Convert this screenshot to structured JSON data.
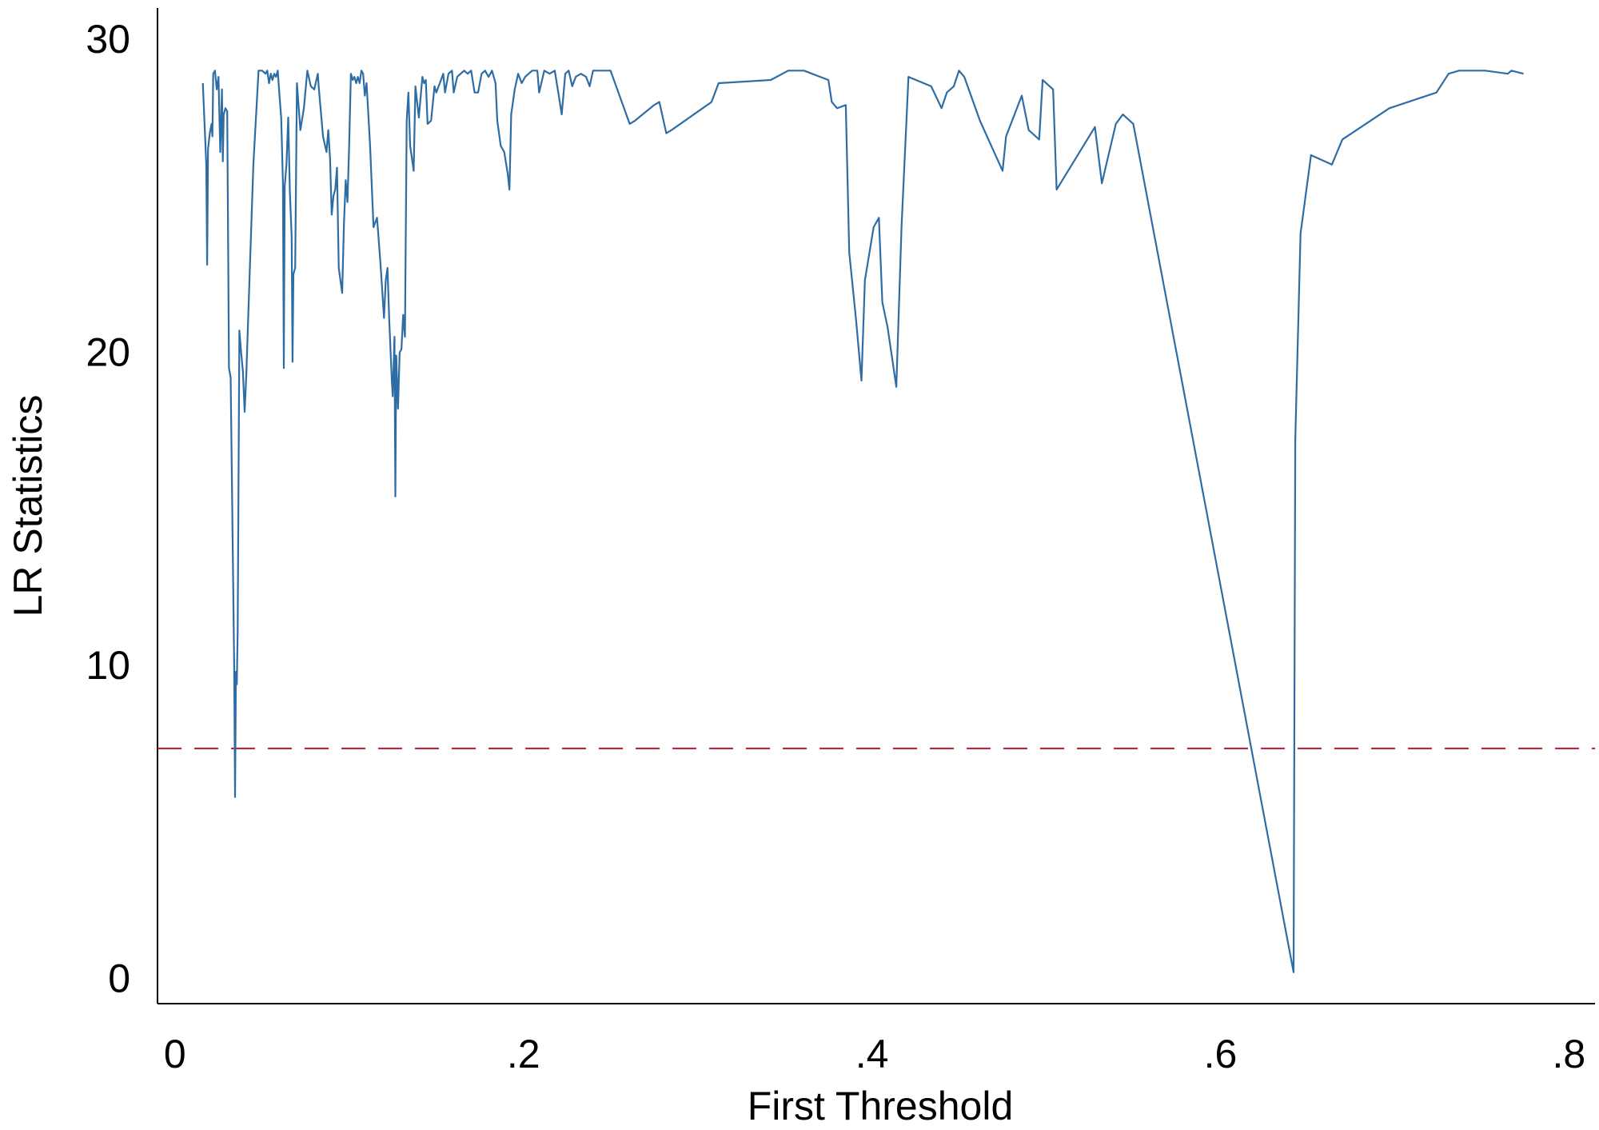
{
  "chart_data": {
    "type": "line",
    "xlabel": "First Threshold",
    "ylabel": "LR Statistics",
    "xlim": [
      -0.01,
      0.815
    ],
    "ylim": [
      -0.8,
      31.0
    ],
    "x_ticks": [
      {
        "value": 0,
        "label": "0"
      },
      {
        "value": 0.2,
        "label": ".2"
      },
      {
        "value": 0.4,
        "label": ".4"
      },
      {
        "value": 0.6,
        "label": ".6"
      },
      {
        "value": 0.8,
        "label": ".8"
      }
    ],
    "y_ticks": [
      {
        "value": 0,
        "label": "0"
      },
      {
        "value": 10,
        "label": "10"
      },
      {
        "value": 20,
        "label": "20"
      },
      {
        "value": 30,
        "label": "30"
      }
    ],
    "grid": false,
    "legend": "none",
    "reference_line": {
      "y": 7.35,
      "style": "dashed",
      "color": "#b2182b"
    },
    "series": [
      {
        "color": "#2e6da4",
        "points": [
          [
            0.016,
            28.6
          ],
          [
            0.018,
            26.0
          ],
          [
            0.0185,
            22.8
          ],
          [
            0.019,
            26.5
          ],
          [
            0.02,
            27.0
          ],
          [
            0.021,
            27.3
          ],
          [
            0.0215,
            26.9
          ],
          [
            0.022,
            28.9
          ],
          [
            0.023,
            29.0
          ],
          [
            0.024,
            28.4
          ],
          [
            0.025,
            28.8
          ],
          [
            0.026,
            26.4
          ],
          [
            0.027,
            28.4
          ],
          [
            0.0275,
            26.1
          ],
          [
            0.028,
            27.6
          ],
          [
            0.029,
            27.8
          ],
          [
            0.03,
            27.7
          ],
          [
            0.031,
            19.5
          ],
          [
            0.032,
            19.2
          ],
          [
            0.034,
            10.0
          ],
          [
            0.0345,
            5.8
          ],
          [
            0.035,
            9.8
          ],
          [
            0.0355,
            9.4
          ],
          [
            0.036,
            11.1
          ],
          [
            0.037,
            20.7
          ],
          [
            0.038,
            20.0
          ],
          [
            0.039,
            19.4
          ],
          [
            0.04,
            18.1
          ],
          [
            0.041,
            19.3
          ],
          [
            0.042,
            21.0
          ],
          [
            0.045,
            26.0
          ],
          [
            0.048,
            29.0
          ],
          [
            0.05,
            29.0
          ],
          [
            0.052,
            28.9
          ],
          [
            0.053,
            29.0
          ],
          [
            0.054,
            28.6
          ],
          [
            0.055,
            28.9
          ],
          [
            0.056,
            28.7
          ],
          [
            0.057,
            28.9
          ],
          [
            0.058,
            28.8
          ],
          [
            0.059,
            29.0
          ],
          [
            0.06,
            28.2
          ],
          [
            0.061,
            27.5
          ],
          [
            0.062,
            25.4
          ],
          [
            0.0625,
            19.5
          ],
          [
            0.063,
            25.3
          ],
          [
            0.064,
            26.0
          ],
          [
            0.065,
            27.5
          ],
          [
            0.066,
            25.1
          ],
          [
            0.067,
            23.7
          ],
          [
            0.0675,
            19.7
          ],
          [
            0.068,
            22.5
          ],
          [
            0.069,
            22.7
          ],
          [
            0.07,
            28.6
          ],
          [
            0.072,
            27.1
          ],
          [
            0.074,
            27.8
          ],
          [
            0.076,
            29.0
          ],
          [
            0.078,
            28.5
          ],
          [
            0.08,
            28.4
          ],
          [
            0.082,
            28.9
          ],
          [
            0.0825,
            28.5
          ],
          [
            0.085,
            26.9
          ],
          [
            0.087,
            26.4
          ],
          [
            0.088,
            27.1
          ],
          [
            0.089,
            26.2
          ],
          [
            0.09,
            24.4
          ],
          [
            0.091,
            25.0
          ],
          [
            0.092,
            25.2
          ],
          [
            0.093,
            25.9
          ],
          [
            0.094,
            22.7
          ],
          [
            0.095,
            22.3
          ],
          [
            0.096,
            21.9
          ],
          [
            0.097,
            24.1
          ],
          [
            0.098,
            25.5
          ],
          [
            0.099,
            24.8
          ],
          [
            0.1,
            26.6
          ],
          [
            0.101,
            28.9
          ],
          [
            0.102,
            28.7
          ],
          [
            0.103,
            28.8
          ],
          [
            0.104,
            28.6
          ],
          [
            0.105,
            28.8
          ],
          [
            0.106,
            28.6
          ],
          [
            0.107,
            29.0
          ],
          [
            0.108,
            28.9
          ],
          [
            0.109,
            28.2
          ],
          [
            0.11,
            28.6
          ],
          [
            0.112,
            26.6
          ],
          [
            0.114,
            24.0
          ],
          [
            0.116,
            24.3
          ],
          [
            0.118,
            22.8
          ],
          [
            0.12,
            21.1
          ],
          [
            0.121,
            22.3
          ],
          [
            0.122,
            22.7
          ],
          [
            0.123,
            21.0
          ],
          [
            0.1245,
            19.1
          ],
          [
            0.125,
            18.6
          ],
          [
            0.126,
            20.5
          ],
          [
            0.1265,
            15.4
          ],
          [
            0.127,
            19.9
          ],
          [
            0.128,
            18.2
          ],
          [
            0.129,
            20.0
          ],
          [
            0.13,
            20.1
          ],
          [
            0.131,
            21.2
          ],
          [
            0.132,
            20.5
          ],
          [
            0.133,
            27.4
          ],
          [
            0.134,
            28.3
          ],
          [
            0.135,
            26.6
          ],
          [
            0.137,
            25.8
          ],
          [
            0.138,
            28.5
          ],
          [
            0.139,
            28.0
          ],
          [
            0.14,
            27.5
          ],
          [
            0.142,
            28.8
          ],
          [
            0.143,
            28.6
          ],
          [
            0.144,
            28.7
          ],
          [
            0.145,
            27.3
          ],
          [
            0.147,
            27.4
          ],
          [
            0.149,
            28.5
          ],
          [
            0.15,
            28.3
          ],
          [
            0.152,
            28.6
          ],
          [
            0.154,
            28.9
          ],
          [
            0.155,
            28.3
          ],
          [
            0.157,
            28.9
          ],
          [
            0.159,
            29.0
          ],
          [
            0.16,
            28.3
          ],
          [
            0.162,
            28.8
          ],
          [
            0.164,
            28.9
          ],
          [
            0.166,
            29.0
          ],
          [
            0.168,
            28.9
          ],
          [
            0.17,
            29.0
          ],
          [
            0.172,
            28.3
          ],
          [
            0.174,
            28.3
          ],
          [
            0.176,
            28.9
          ],
          [
            0.178,
            29.0
          ],
          [
            0.18,
            28.8
          ],
          [
            0.182,
            29.0
          ],
          [
            0.184,
            28.6
          ],
          [
            0.185,
            27.4
          ],
          [
            0.187,
            26.6
          ],
          [
            0.189,
            26.4
          ],
          [
            0.191,
            25.7
          ],
          [
            0.192,
            25.2
          ],
          [
            0.193,
            27.6
          ],
          [
            0.195,
            28.4
          ],
          [
            0.197,
            28.9
          ],
          [
            0.199,
            28.6
          ],
          [
            0.201,
            28.8
          ],
          [
            0.205,
            29.0
          ],
          [
            0.208,
            29.0
          ],
          [
            0.209,
            28.3
          ],
          [
            0.212,
            29.0
          ],
          [
            0.215,
            28.9
          ],
          [
            0.218,
            29.0
          ],
          [
            0.22,
            28.3
          ],
          [
            0.222,
            27.6
          ],
          [
            0.224,
            28.9
          ],
          [
            0.226,
            29.0
          ],
          [
            0.228,
            28.5
          ],
          [
            0.23,
            28.8
          ],
          [
            0.233,
            28.9
          ],
          [
            0.236,
            28.8
          ],
          [
            0.238,
            28.5
          ],
          [
            0.24,
            29.0
          ],
          [
            0.245,
            29.0
          ],
          [
            0.25,
            29.0
          ],
          [
            0.261,
            27.3
          ],
          [
            0.264,
            27.4
          ],
          [
            0.275,
            27.9
          ],
          [
            0.278,
            28.0
          ],
          [
            0.282,
            27.0
          ],
          [
            0.285,
            27.1
          ],
          [
            0.308,
            28.0
          ],
          [
            0.312,
            28.6
          ],
          [
            0.342,
            28.7
          ],
          [
            0.352,
            29.0
          ],
          [
            0.357,
            29.0
          ],
          [
            0.361,
            29.0
          ],
          [
            0.375,
            28.7
          ],
          [
            0.377,
            28.0
          ],
          [
            0.38,
            27.8
          ],
          [
            0.385,
            27.9
          ],
          [
            0.387,
            23.2
          ],
          [
            0.391,
            21.0
          ],
          [
            0.394,
            19.1
          ],
          [
            0.396,
            22.3
          ],
          [
            0.401,
            24.0
          ],
          [
            0.404,
            24.3
          ],
          [
            0.406,
            21.6
          ],
          [
            0.409,
            20.8
          ],
          [
            0.414,
            18.9
          ],
          [
            0.417,
            24.0
          ],
          [
            0.421,
            28.8
          ],
          [
            0.434,
            28.5
          ],
          [
            0.44,
            27.8
          ],
          [
            0.443,
            28.3
          ],
          [
            0.447,
            28.5
          ],
          [
            0.45,
            29.0
          ],
          [
            0.453,
            28.8
          ],
          [
            0.462,
            27.4
          ],
          [
            0.475,
            25.8
          ],
          [
            0.477,
            26.9
          ],
          [
            0.486,
            28.2
          ],
          [
            0.49,
            27.1
          ],
          [
            0.496,
            26.8
          ],
          [
            0.498,
            28.7
          ],
          [
            0.504,
            28.4
          ],
          [
            0.506,
            25.2
          ],
          [
            0.528,
            27.2
          ],
          [
            0.532,
            25.4
          ],
          [
            0.54,
            27.3
          ],
          [
            0.544,
            27.6
          ],
          [
            0.55,
            27.3
          ],
          [
            0.642,
            0.2
          ],
          [
            0.643,
            17.2
          ],
          [
            0.646,
            23.8
          ],
          [
            0.652,
            26.3
          ],
          [
            0.664,
            26.0
          ],
          [
            0.67,
            26.8
          ],
          [
            0.697,
            27.8
          ],
          [
            0.724,
            28.3
          ],
          [
            0.731,
            28.9
          ],
          [
            0.737,
            29.0
          ],
          [
            0.752,
            29.0
          ],
          [
            0.765,
            28.9
          ],
          [
            0.767,
            29.0
          ],
          [
            0.774,
            28.9
          ]
        ]
      }
    ]
  }
}
